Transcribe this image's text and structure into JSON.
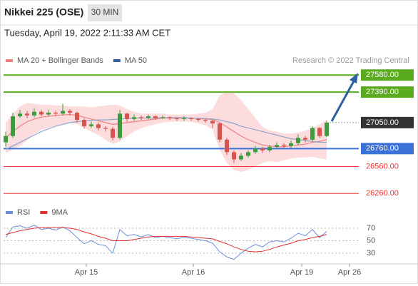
{
  "chart_data": [
    {
      "type": "candlestick",
      "title": "Nikkei 225 (OSE)",
      "interval": "30 MIN",
      "subtitle": "Tuesday, April 19, 2022 2:11:33 AM CET",
      "source": "Research © 2022 Trading Central",
      "up_color": "#3d9a3d",
      "down_color": "#d9534f",
      "open": [
        26830,
        26900,
        27120,
        27150,
        27130,
        27170,
        27140,
        27160,
        27150,
        27180,
        27160,
        27080,
        27010,
        27030,
        26990,
        26980,
        26880,
        27150,
        27090,
        27110,
        27100,
        27120,
        27100,
        27110,
        27100,
        27090,
        27100,
        27090,
        27080,
        27070,
        27040,
        26860,
        26720,
        26640,
        26680,
        26720,
        26760,
        26740,
        26780,
        26800,
        26790,
        26820,
        26880,
        26860,
        26990,
        26900
      ],
      "high": [
        26950,
        27160,
        27190,
        27180,
        27210,
        27190,
        27190,
        27180,
        27260,
        27200,
        27170,
        27100,
        27060,
        27050,
        27010,
        27000,
        27190,
        27160,
        27140,
        27130,
        27140,
        27130,
        27130,
        27120,
        27110,
        27120,
        27110,
        27100,
        27090,
        27080,
        27050,
        26880,
        26740,
        26710,
        26740,
        26790,
        26780,
        26800,
        26830,
        26820,
        26850,
        26920,
        26900,
        27010,
        27000,
        27070
      ],
      "low": [
        26780,
        26880,
        27100,
        27100,
        27110,
        27120,
        27120,
        27120,
        27130,
        27130,
        27050,
        26980,
        26990,
        26960,
        26950,
        26850,
        26860,
        27060,
        27070,
        27080,
        27090,
        27080,
        27090,
        27080,
        27070,
        27070,
        27070,
        27060,
        27050,
        26990,
        26830,
        26690,
        26600,
        26620,
        26660,
        26700,
        26710,
        26720,
        26760,
        26770,
        26770,
        26800,
        26830,
        26840,
        26880,
        26890
      ],
      "close": [
        26900,
        27120,
        27150,
        27130,
        27170,
        27140,
        27160,
        27150,
        27180,
        27160,
        27080,
        27010,
        27030,
        26990,
        26980,
        26880,
        27150,
        27090,
        27110,
        27100,
        27120,
        27100,
        27110,
        27100,
        27090,
        27100,
        27090,
        27080,
        27070,
        27040,
        26860,
        26720,
        26640,
        26680,
        26720,
        26760,
        26740,
        26780,
        26800,
        26790,
        26820,
        26880,
        26860,
        26990,
        26900,
        27050
      ],
      "series": [
        {
          "name": "MA 20 + Bollinger Bands",
          "color": "#f08080",
          "band_color": "#fbd3d3",
          "values": [
            26880,
            26950,
            27010,
            27060,
            27090,
            27110,
            27120,
            27130,
            27135,
            27140,
            27130,
            27110,
            27090,
            27070,
            27050,
            27030,
            27040,
            27050,
            27060,
            27070,
            27080,
            27090,
            27100,
            27100,
            27100,
            27100,
            27100,
            27095,
            27090,
            27085,
            27050,
            27000,
            26950,
            26900,
            26860,
            26830,
            26800,
            26790,
            26780,
            26780,
            26790,
            26800,
            26810,
            26830,
            26840,
            26860
          ],
          "upper": [
            27050,
            27150,
            27230,
            27270,
            27260,
            27250,
            27250,
            27240,
            27240,
            27230,
            27230,
            27230,
            27220,
            27230,
            27240,
            27250,
            27240,
            27200,
            27170,
            27150,
            27150,
            27150,
            27150,
            27140,
            27140,
            27140,
            27140,
            27150,
            27160,
            27200,
            27350,
            27400,
            27380,
            27300,
            27200,
            27100,
            27000,
            26960,
            26950,
            26930,
            26930,
            26940,
            26960,
            26990,
            27030,
            27080
          ],
          "lower": [
            26710,
            26750,
            26790,
            26850,
            26920,
            26970,
            26990,
            27020,
            27030,
            27050,
            27030,
            26990,
            26950,
            26910,
            26860,
            26810,
            26840,
            26900,
            26950,
            26990,
            27010,
            27030,
            27050,
            27060,
            27060,
            27060,
            27060,
            27040,
            27020,
            26970,
            26750,
            26600,
            26520,
            26500,
            26520,
            26560,
            26600,
            26620,
            26610,
            26630,
            26650,
            26660,
            26660,
            26670,
            26650,
            26640
          ]
        },
        {
          "name": "MA 50",
          "color": "#2f5f9f",
          "line_color": "#8fa6cc",
          "values": [
            26750,
            26790,
            26830,
            26870,
            26910,
            26950,
            26980,
            27010,
            27030,
            27050,
            27060,
            27070,
            27075,
            27080,
            27080,
            27085,
            27090,
            27095,
            27100,
            27100,
            27100,
            27100,
            27105,
            27105,
            27105,
            27105,
            27100,
            27100,
            27095,
            27090,
            27080,
            27060,
            27040,
            27010,
            26990,
            26970,
            26950,
            26930,
            26910,
            26890,
            26870,
            26860,
            26850,
            26840,
            26830,
            26830
          ]
        }
      ],
      "levels": [
        {
          "value": 27580,
          "label": "27580.00",
          "color": "#5aab1e",
          "style": "box"
        },
        {
          "value": 27390,
          "label": "27390.00",
          "color": "#5aab1e",
          "style": "box"
        },
        {
          "value": 27050,
          "label": "27050.00",
          "color": "#333333",
          "style": "current"
        },
        {
          "value": 26760,
          "label": "26760.00",
          "color": "#3a72d8",
          "style": "box"
        },
        {
          "value": 26560,
          "label": "26560.00",
          "color": "#ee3333",
          "style": "text"
        },
        {
          "value": 26260,
          "label": "26260.00",
          "color": "#ee3333",
          "style": "text"
        }
      ],
      "xlim": [
        -0.3,
        49.5
      ],
      "ylim": [
        26190,
        27900
      ]
    },
    {
      "type": "line",
      "series": [
        {
          "name": "RSI",
          "color": "#6b8fd6",
          "values": [
            55,
            72,
            74,
            70,
            75,
            68,
            70,
            67,
            72,
            66,
            55,
            45,
            50,
            44,
            42,
            30,
            68,
            58,
            60,
            56,
            60,
            55,
            57,
            55,
            53,
            56,
            54,
            52,
            50,
            46,
            32,
            24,
            20,
            30,
            38,
            44,
            40,
            48,
            50,
            48,
            54,
            62,
            58,
            68,
            55,
            65
          ]
        },
        {
          "name": "9MA",
          "color": "#e03030",
          "values": [
            60,
            63,
            66,
            68,
            70,
            71,
            71,
            71,
            71,
            70,
            68,
            64,
            61,
            57,
            54,
            50,
            50,
            50,
            52,
            54,
            56,
            57,
            57,
            57,
            57,
            57,
            56,
            55,
            54,
            53,
            49,
            45,
            40,
            36,
            33,
            32,
            33,
            36,
            40,
            43,
            46,
            50,
            52,
            55,
            57,
            60
          ]
        }
      ],
      "ylim": [
        15,
        93
      ],
      "yticks": [
        70,
        50,
        30
      ],
      "xlim": [
        -0.3,
        49.5
      ],
      "xticks": [
        {
          "value": 11.3,
          "label": "Apr 15"
        },
        {
          "value": 26.3,
          "label": "Apr 16"
        },
        {
          "value": 41.5,
          "label": "Apr 19"
        },
        {
          "value": 48.2,
          "label": "Apr 26"
        }
      ]
    }
  ]
}
